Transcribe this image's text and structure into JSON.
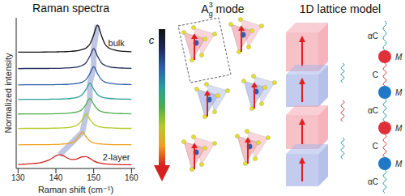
{
  "chart_data": {
    "type": "line",
    "title": "Raman spectra",
    "x_label": "Raman shift (cm⁻¹)",
    "y_label": "Normalized intensity",
    "x": [
      130,
      132,
      134,
      136,
      138,
      139,
      140,
      141,
      142,
      143,
      144,
      145,
      146,
      147,
      148,
      149,
      150,
      151,
      152,
      153,
      154,
      156,
      158,
      160
    ],
    "series": [
      {
        "name": "bulk",
        "color": "#111111",
        "values": [
          6.41,
          6.41,
          6.41,
          6.41,
          6.42,
          6.42,
          6.42,
          6.43,
          6.43,
          6.44,
          6.45,
          6.47,
          6.5,
          6.55,
          6.64,
          6.85,
          7.35,
          7.9,
          7.35,
          6.85,
          6.64,
          6.5,
          6.45,
          6.43
        ]
      },
      {
        "color": "#1f2a5c",
        "values": [
          5.5,
          5.51,
          5.51,
          5.51,
          5.51,
          5.52,
          5.52,
          5.52,
          5.53,
          5.54,
          5.55,
          5.57,
          5.61,
          5.68,
          5.83,
          6.19,
          6.6,
          6.19,
          5.83,
          5.68,
          5.61,
          5.55,
          5.53,
          5.52
        ]
      },
      {
        "color": "#2f5fa8",
        "values": [
          4.6,
          4.61,
          4.61,
          4.61,
          4.61,
          4.61,
          4.62,
          4.62,
          4.63,
          4.63,
          4.65,
          4.67,
          4.7,
          4.76,
          4.9,
          5.23,
          5.6,
          5.23,
          4.9,
          4.76,
          4.7,
          4.65,
          4.63,
          4.62
        ]
      },
      {
        "color": "#2a9d9a",
        "values": [
          3.8,
          3.81,
          3.81,
          3.81,
          3.81,
          3.82,
          3.82,
          3.82,
          3.83,
          3.84,
          3.86,
          3.89,
          3.94,
          4.07,
          4.37,
          4.7,
          4.37,
          4.07,
          3.94,
          3.89,
          3.86,
          3.83,
          3.82,
          3.81
        ]
      },
      {
        "color": "#4cae4c",
        "values": [
          3.0,
          3.01,
          3.01,
          3.01,
          3.01,
          3.01,
          3.02,
          3.02,
          3.03,
          3.04,
          3.06,
          3.09,
          3.14,
          3.26,
          3.54,
          3.85,
          3.54,
          3.26,
          3.14,
          3.09,
          3.06,
          3.03,
          3.02,
          3.01
        ]
      },
      {
        "color": "#b5c92a",
        "values": [
          2.2,
          2.21,
          2.21,
          2.21,
          2.21,
          2.22,
          2.22,
          2.23,
          2.24,
          2.25,
          2.28,
          2.33,
          2.44,
          2.7,
          3.0,
          2.7,
          2.44,
          2.33,
          2.28,
          2.25,
          2.24,
          2.22,
          2.21,
          2.21
        ]
      },
      {
        "color": "#f0a020",
        "values": [
          1.3,
          1.31,
          1.31,
          1.31,
          1.31,
          1.32,
          1.32,
          1.33,
          1.35,
          1.37,
          1.41,
          1.51,
          1.74,
          2.0,
          1.74,
          1.51,
          1.41,
          1.37,
          1.35,
          1.33,
          1.32,
          1.31,
          1.31,
          1.31
        ]
      },
      {
        "name": "2-layer",
        "color": "#d62020",
        "values": [
          0.22,
          0.24,
          0.27,
          0.32,
          0.45,
          0.56,
          0.7,
          0.75,
          0.7,
          0.58,
          0.5,
          0.5,
          0.56,
          0.64,
          0.65,
          0.55,
          0.42,
          0.33,
          0.28,
          0.25,
          0.24,
          0.22,
          0.21,
          0.21
        ]
      }
    ],
    "peak_trace": {
      "x": [
        141,
        147,
        148,
        149,
        149,
        150,
        150,
        151
      ],
      "values": [
        0.75,
        2.0,
        3.0,
        3.85,
        4.7,
        5.6,
        6.6,
        7.9
      ],
      "color": "#8a98c8"
    },
    "xlim": [
      129.5,
      161
    ],
    "ylim": [
      0,
      8.3
    ],
    "xticks": [
      130,
      140,
      150,
      160
    ],
    "tick_labels": "x"
  },
  "diagram": {
    "mode_title": {
      "base": "A",
      "sub": "g",
      "sup": "3",
      "suffix": " mode"
    },
    "axis_label": "c",
    "model_title": "1D lattice model",
    "springs": [
      "αC",
      "C",
      "αC",
      "C",
      "αC"
    ],
    "masses": [
      {
        "label": "M",
        "color": "#e0303a"
      },
      {
        "label": "M",
        "color": "#1f78c8"
      },
      {
        "label": "M",
        "color": "#e0303a"
      },
      {
        "label": "M",
        "color": "#1f78c8"
      }
    ]
  }
}
